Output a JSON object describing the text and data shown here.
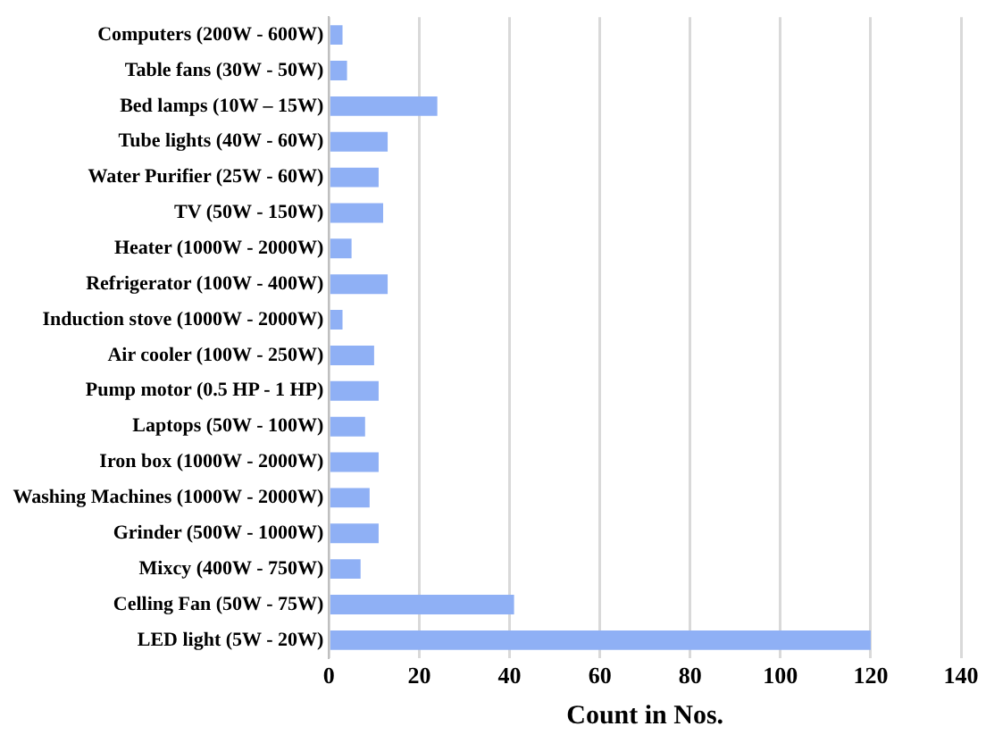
{
  "chart_data": {
    "type": "bar",
    "orientation": "horizontal",
    "xlabel": "Count in Nos.",
    "categories": [
      "Computers (200W - 600W)",
      "Table fans (30W - 50W)",
      "Bed lamps (10W – 15W)",
      "Tube lights (40W - 60W)",
      "Water Purifier (25W - 60W)",
      "TV (50W - 150W)",
      "Heater (1000W - 2000W)",
      "Refrigerator (100W - 400W)",
      "Induction stove (1000W - 2000W)",
      "Air cooler (100W - 250W)",
      "Pump motor (0.5 HP - 1 HP)",
      "Laptops (50W - 100W)",
      "Iron box (1000W - 2000W)",
      "Washing Machines (1000W - 2000W)",
      "Grinder (500W - 1000W)",
      "Mixcy (400W - 750W)",
      "Celling Fan (50W - 75W)",
      "LED light (5W - 20W)"
    ],
    "values": [
      3,
      4,
      24,
      13,
      11,
      12,
      5,
      13,
      3,
      10,
      11,
      8,
      11,
      9,
      11,
      7,
      41,
      120
    ],
    "color": "#8fb0f5",
    "xlim": [
      0,
      140
    ],
    "xticks": [
      0,
      20,
      40,
      60,
      80,
      100,
      120,
      140
    ],
    "grid": "x",
    "legend": false
  }
}
